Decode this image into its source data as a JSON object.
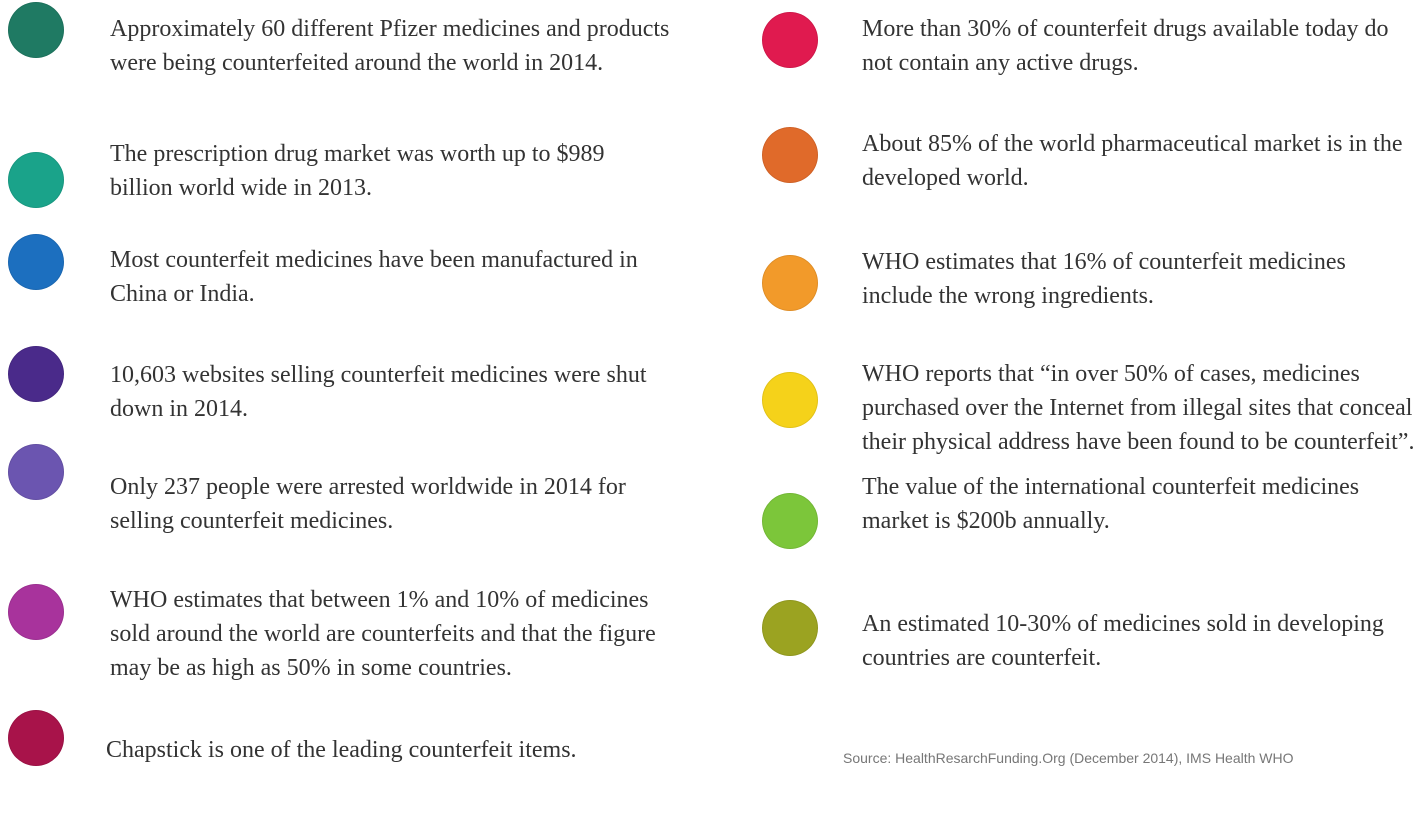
{
  "left": [
    "Approximately 60 different Pfizer medicines and products were being counterfeited around the world in 2014.",
    "The prescription drug market was worth up to $989 billion world wide in 2013.",
    "Most counterfeit medicines have been manufactured in China or India.",
    "10,603 websites selling counterfeit medicines were shut down in 2014.",
    "Only 237 people were arrested worldwide in 2014 for selling counterfeit medicines.",
    "WHO estimates that between 1% and 10% of medicines sold around the world are counterfeits and that the figure may be as high as 50% in some countries.",
    "Chapstick is one of the leading counterfeit items."
  ],
  "right": [
    "More than 30% of counterfeit drugs available today do not contain any active drugs.",
    "About 85% of the world pharmaceutical market is in the developed world.",
    "WHO estimates that 16% of counterfeit medicines include the wrong ingredients.",
    "WHO reports that “in over 50% of cases, medicines purchased over the Internet from illegal sites that conceal their physical address have been found to be counterfeit”.",
    "The value of the international counterfeit medicines market is $200b annually.",
    "An estimated 10-30% of medicines sold in developing countries are counterfeit."
  ],
  "source": "Source: HealthResarchFunding.Org (December 2014), IMS Health WHO"
}
